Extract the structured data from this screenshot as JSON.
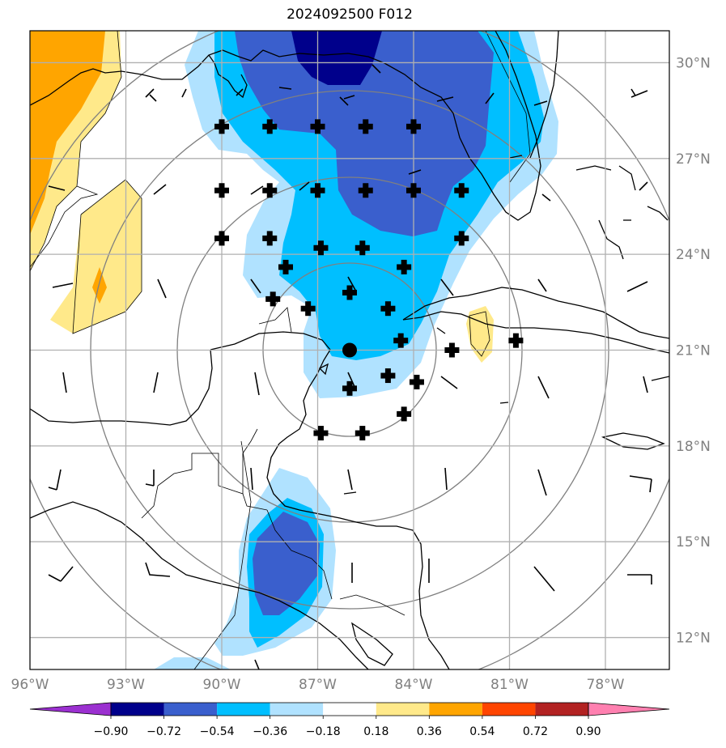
{
  "title": "2024092500 F012",
  "map": {
    "lon_range": [
      -96,
      -76
    ],
    "lat_range": [
      11,
      31
    ],
    "lon_ticks": [
      -96,
      -93,
      -90,
      -87,
      -84,
      -81,
      -78
    ],
    "lon_tick_labels": [
      "96°W",
      "93°W",
      "90°W",
      "87°W",
      "84°W",
      "81°W",
      "78°W"
    ],
    "lat_ticks": [
      12,
      15,
      18,
      21,
      24,
      27,
      30
    ],
    "lat_tick_labels": [
      "12°N",
      "15°N",
      "18°N",
      "21°N",
      "24°N",
      "27°N",
      "30°N"
    ],
    "center": {
      "lon": -86.0,
      "lat": 21.0
    },
    "grid": true
  },
  "markers": [
    {
      "lon": -90.0,
      "lat": 28.0
    },
    {
      "lon": -88.5,
      "lat": 28.0
    },
    {
      "lon": -87.0,
      "lat": 28.0
    },
    {
      "lon": -85.5,
      "lat": 28.0
    },
    {
      "lon": -84.0,
      "lat": 28.0
    },
    {
      "lon": -90.0,
      "lat": 26.0
    },
    {
      "lon": -88.5,
      "lat": 26.0
    },
    {
      "lon": -87.0,
      "lat": 26.0
    },
    {
      "lon": -85.5,
      "lat": 26.0
    },
    {
      "lon": -84.0,
      "lat": 26.0
    },
    {
      "lon": -82.5,
      "lat": 26.0
    },
    {
      "lon": -90.0,
      "lat": 24.5
    },
    {
      "lon": -88.5,
      "lat": 24.5
    },
    {
      "lon": -86.9,
      "lat": 24.2
    },
    {
      "lon": -85.6,
      "lat": 24.2
    },
    {
      "lon": -82.5,
      "lat": 24.5
    },
    {
      "lon": -88.0,
      "lat": 23.6
    },
    {
      "lon": -84.3,
      "lat": 23.6
    },
    {
      "lon": -86.0,
      "lat": 22.8
    },
    {
      "lon": -88.4,
      "lat": 22.6
    },
    {
      "lon": -87.3,
      "lat": 22.3
    },
    {
      "lon": -84.8,
      "lat": 22.3
    },
    {
      "lon": -84.4,
      "lat": 21.3
    },
    {
      "lon": -82.8,
      "lat": 21.0
    },
    {
      "lon": -80.8,
      "lat": 21.3
    },
    {
      "lon": -84.8,
      "lat": 20.2
    },
    {
      "lon": -83.9,
      "lat": 20.0
    },
    {
      "lon": -86.0,
      "lat": 19.8
    },
    {
      "lon": -84.3,
      "lat": 19.0
    },
    {
      "lon": -86.9,
      "lat": 18.4
    },
    {
      "lon": -85.6,
      "lat": 18.4
    }
  ],
  "center_marker": {
    "lon": -86.0,
    "lat": 21.0
  },
  "colorbar": {
    "tick_labels": [
      "−0.90",
      "−0.72",
      "−0.54",
      "−0.36",
      "−0.18",
      "0.18",
      "0.36",
      "0.54",
      "0.72",
      "0.90"
    ],
    "colors": [
      "#9b30d0",
      "#00008b",
      "#3a5fcd",
      "#00bfff",
      "#b0e2ff",
      "#ffffff",
      "#ffe98a",
      "#ffa500",
      "#ff4500",
      "#b22222",
      "#ff80b0"
    ]
  }
}
